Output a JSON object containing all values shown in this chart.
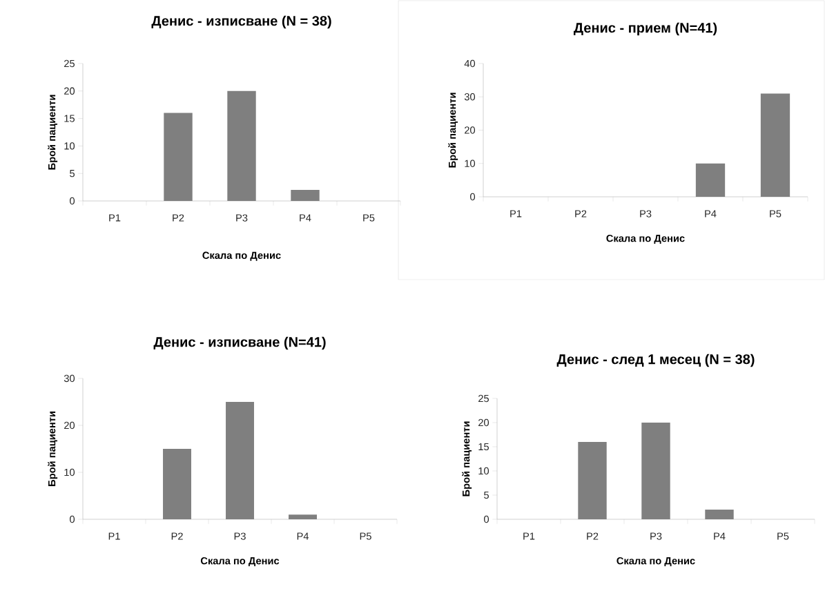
{
  "chart_data": [
    {
      "type": "bar",
      "title": "Денис - изписване (N = 38)",
      "xlabel": "Скала по Денис",
      "ylabel": "Брой пациенти",
      "categories": [
        "P1",
        "P2",
        "P3",
        "P4",
        "P5"
      ],
      "values": [
        0,
        16,
        20,
        2,
        0
      ],
      "color": "#7f7f7f",
      "ylim": [
        0,
        25
      ],
      "yticks": [
        0,
        5,
        10,
        15,
        20,
        25
      ]
    },
    {
      "type": "bar",
      "title": "Денис - прием (N=41)",
      "xlabel": "Скала по Денис",
      "ylabel": "Брой пациенти",
      "categories": [
        "P1",
        "P2",
        "P3",
        "P4",
        "P5"
      ],
      "values": [
        0,
        0,
        0,
        10,
        31
      ],
      "color": "#7f7f7f",
      "ylim": [
        0,
        40
      ],
      "yticks": [
        0,
        10,
        20,
        30,
        40
      ]
    },
    {
      "type": "bar",
      "title": "Денис - изписване (N=41)",
      "xlabel": "Скала по Денис",
      "ylabel": "Брой пациенти",
      "categories": [
        "P1",
        "P2",
        "P3",
        "P4",
        "P5"
      ],
      "values": [
        0,
        15,
        25,
        1,
        0
      ],
      "color": "#7f7f7f",
      "ylim": [
        0,
        30
      ],
      "yticks": [
        0,
        10,
        20,
        30
      ]
    },
    {
      "type": "bar",
      "title": "Денис - след 1 месец (N = 38)",
      "xlabel": "Скала по Денис",
      "ylabel": "Брой пациенти",
      "categories": [
        "P1",
        "P2",
        "P3",
        "P4",
        "P5"
      ],
      "values": [
        0,
        16,
        20,
        2,
        0
      ],
      "color": "#7f7f7f",
      "ylim": [
        0,
        25
      ],
      "yticks": [
        0,
        5,
        10,
        15,
        20,
        25
      ]
    }
  ]
}
